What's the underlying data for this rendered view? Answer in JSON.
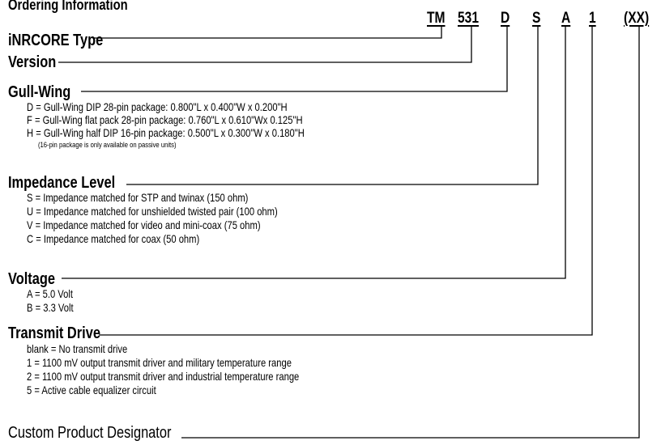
{
  "title": "Ordering Information",
  "codes": [
    "TM",
    "531",
    "D",
    "S",
    "A",
    "1",
    "(XX)"
  ],
  "sections": [
    {
      "label": "iNRCORE Type",
      "items": []
    },
    {
      "label": "Version",
      "items": []
    },
    {
      "label": "Gull-Wing",
      "items": [
        "D = Gull-Wing DIP 28-pin package: 0.800\"L x 0.400\"W x 0.200\"H",
        "F = Gull-Wing flat pack 28-pin package: 0.760\"L x 0.610\"Wx 0.125\"H",
        "H = Gull-Wing half DIP 16-pin package: 0.500\"L x 0.300\"W x 0.180\"H"
      ],
      "note": "(16-pin package is only available on passive units)"
    },
    {
      "label": "Impedance Level",
      "items": [
        "S = Impedance matched for STP and twinax (150 ohm)",
        "U = Impedance matched for unshielded twisted pair (100 ohm)",
        "V = Impedance matched for video and mini-coax (75 ohm)",
        "C = Impedance matched for coax (50 ohm)"
      ]
    },
    {
      "label": "Voltage",
      "items": [
        "A = 5.0 Volt",
        "B = 3.3 Volt"
      ]
    },
    {
      "label": "Transmit Drive",
      "items": [
        "blank = No transmit drive",
        "1 = 1100 mV output transmit driver and military temperature range",
        "2 = 1100 mV output transmit driver and industrial temperature range",
        "5 = Active cable equalizer circuit"
      ]
    },
    {
      "label": "Custom Product Designator",
      "items": []
    }
  ]
}
